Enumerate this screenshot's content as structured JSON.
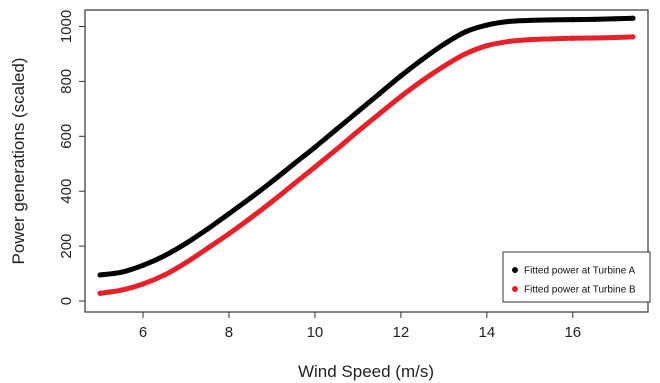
{
  "chart_data": {
    "type": "line",
    "xlabel": "Wind Speed (m/s)",
    "ylabel": "Power generations (scaled)",
    "xlim": [
      4.65,
      17.75
    ],
    "ylim": [
      -40,
      1060
    ],
    "x_ticks": [
      6,
      8,
      10,
      12,
      14,
      16
    ],
    "y_ticks": [
      0,
      200,
      400,
      600,
      800,
      1000
    ],
    "x_tick_labels": [
      "6",
      "8",
      "10",
      "12",
      "14",
      "16"
    ],
    "y_tick_labels": [
      "0",
      "200",
      "400",
      "600",
      "800",
      "1000"
    ],
    "grid": false,
    "legend_position": "bottom-right",
    "series": [
      {
        "name": "Fitted power at Turbine A",
        "color": "#000000",
        "x": [
          5.0,
          5.5,
          6.0,
          6.5,
          7.0,
          7.5,
          8.0,
          8.5,
          9.0,
          9.5,
          10.0,
          10.5,
          11.0,
          11.5,
          12.0,
          12.5,
          13.0,
          13.5,
          14.0,
          14.5,
          15.0,
          15.5,
          16.0,
          16.5,
          17.0,
          17.4
        ],
        "y": [
          95,
          105,
          130,
          165,
          210,
          262,
          318,
          375,
          435,
          498,
          560,
          625,
          690,
          755,
          820,
          880,
          935,
          980,
          1005,
          1018,
          1022,
          1024,
          1025,
          1026,
          1028,
          1030
        ]
      },
      {
        "name": "Fitted power at Turbine B",
        "color": "#e8202a",
        "x": [
          5.0,
          5.5,
          6.0,
          6.5,
          7.0,
          7.5,
          8.0,
          8.5,
          9.0,
          9.5,
          10.0,
          10.5,
          11.0,
          11.5,
          12.0,
          12.5,
          13.0,
          13.5,
          14.0,
          14.5,
          15.0,
          15.5,
          16.0,
          16.5,
          17.0,
          17.4
        ],
        "y": [
          28,
          40,
          62,
          95,
          140,
          192,
          245,
          302,
          362,
          425,
          488,
          552,
          618,
          682,
          745,
          803,
          855,
          900,
          930,
          945,
          952,
          955,
          957,
          958,
          960,
          962
        ]
      }
    ]
  }
}
